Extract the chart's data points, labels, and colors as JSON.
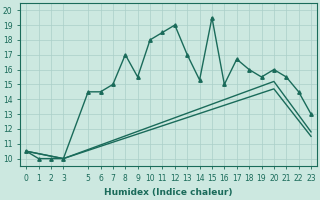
{
  "xlabel": "Humidex (Indice chaleur)",
  "bg_color": "#cce8e0",
  "line_color": "#1a6b5a",
  "grid_color": "#aacfc8",
  "xlim": [
    -0.5,
    23.5
  ],
  "ylim": [
    9.5,
    20.5
  ],
  "xticks": [
    0,
    1,
    2,
    3,
    5,
    6,
    7,
    8,
    9,
    10,
    11,
    12,
    13,
    14,
    15,
    16,
    17,
    18,
    19,
    20,
    21,
    22,
    23
  ],
  "yticks": [
    10,
    11,
    12,
    13,
    14,
    15,
    16,
    17,
    18,
    19,
    20
  ],
  "series": [
    {
      "x": [
        0,
        1,
        2,
        3,
        5,
        6,
        7,
        8,
        9,
        10,
        11,
        12,
        13,
        14,
        15,
        16,
        17,
        18,
        19,
        20,
        21,
        22,
        23
      ],
      "y": [
        10.5,
        10.0,
        10.0,
        10.0,
        14.5,
        14.5,
        15.0,
        17.0,
        15.5,
        18.0,
        18.5,
        19.0,
        17.0,
        15.3,
        19.5,
        15.0,
        16.7,
        16.0,
        15.5,
        16.0,
        15.5,
        14.5,
        13.0
      ],
      "marker": "^",
      "markersize": 2.5,
      "linewidth": 1.0
    },
    {
      "x": [
        0,
        3,
        20,
        23
      ],
      "y": [
        10.5,
        10.0,
        15.2,
        11.8
      ],
      "marker": null,
      "markersize": 0,
      "linewidth": 1.0
    },
    {
      "x": [
        0,
        3,
        20,
        23
      ],
      "y": [
        10.5,
        10.0,
        14.7,
        11.5
      ],
      "marker": null,
      "markersize": 0,
      "linewidth": 1.0
    }
  ]
}
